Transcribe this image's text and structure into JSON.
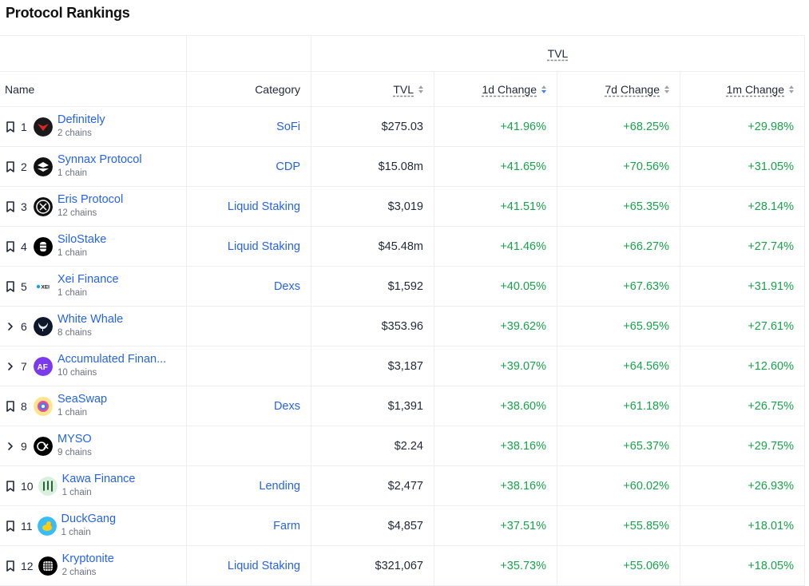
{
  "page": {
    "title": "Protocol Rankings"
  },
  "headers": {
    "group_tvl": "TVL",
    "name": "Name",
    "category": "Category",
    "tvl": "TVL",
    "change_1d": "1d Change",
    "change_7d": "7d Change",
    "change_1m": "1m Change"
  },
  "colors": {
    "link": "#2563eb",
    "positive": "#16a34a",
    "sort_active": "#3b82f6"
  },
  "rows": [
    {
      "rank": "1",
      "lead_icon": "bookmark-icon",
      "name": "Definitely",
      "chains": "2 chains",
      "category": "SoFi",
      "tvl": "$275.03",
      "change_1d": "+41.96%",
      "change_7d": "+68.25%",
      "change_1m": "+29.98%",
      "logo_icon": "definitely-logo",
      "logo_bg": "#1a1a1a"
    },
    {
      "rank": "2",
      "lead_icon": "bookmark-icon",
      "name": "Synnax Protocol",
      "chains": "1 chain",
      "category": "CDP",
      "tvl": "$15.08m",
      "change_1d": "+41.65%",
      "change_7d": "+70.56%",
      "change_1m": "+31.05%",
      "logo_icon": "synnax-logo",
      "logo_bg": "#111111"
    },
    {
      "rank": "3",
      "lead_icon": "bookmark-icon",
      "name": "Eris Protocol",
      "chains": "12 chains",
      "category": "Liquid Staking",
      "tvl": "$3,019",
      "change_1d": "+41.51%",
      "change_7d": "+65.35%",
      "change_1m": "+28.14%",
      "logo_icon": "eris-logo",
      "logo_bg": "#111111"
    },
    {
      "rank": "4",
      "lead_icon": "bookmark-icon",
      "name": "SiloStake",
      "chains": "1 chain",
      "category": "Liquid Staking",
      "tvl": "$45.48m",
      "change_1d": "+41.46%",
      "change_7d": "+66.27%",
      "change_1m": "+27.74%",
      "logo_icon": "silostake-logo",
      "logo_bg": "#000000"
    },
    {
      "rank": "5",
      "lead_icon": "bookmark-icon",
      "name": "Xei Finance",
      "chains": "1 chain",
      "category": "Dexs",
      "tvl": "$1,592",
      "change_1d": "+40.05%",
      "change_7d": "+67.63%",
      "change_1m": "+31.91%",
      "logo_icon": "xei-logo",
      "logo_bg": "#ffffff"
    },
    {
      "rank": "6",
      "lead_icon": "chevron-right-icon",
      "name": "White Whale",
      "chains": "8 chains",
      "category": "",
      "tvl": "$353.96",
      "change_1d": "+39.62%",
      "change_7d": "+65.95%",
      "change_1m": "+27.61%",
      "logo_icon": "white-whale-logo",
      "logo_bg": "#0f172a"
    },
    {
      "rank": "7",
      "lead_icon": "chevron-right-icon",
      "name": "Accumulated Finan...",
      "chains": "10 chains",
      "category": "",
      "tvl": "$3,187",
      "change_1d": "+39.07%",
      "change_7d": "+64.56%",
      "change_1m": "+12.60%",
      "logo_icon": "accumulated-finance-logo",
      "logo_bg": "#7c3aed",
      "logo_text": "AF"
    },
    {
      "rank": "8",
      "lead_icon": "bookmark-icon",
      "name": "SeaSwap",
      "chains": "1 chain",
      "category": "Dexs",
      "tvl": "$1,391",
      "change_1d": "+38.60%",
      "change_7d": "+61.18%",
      "change_1m": "+26.75%",
      "logo_icon": "seaswap-logo",
      "logo_bg": "#fde68a"
    },
    {
      "rank": "9",
      "lead_icon": "chevron-right-icon",
      "name": "MYSO",
      "chains": "9 chains",
      "category": "",
      "tvl": "$2.24",
      "change_1d": "+38.16%",
      "change_7d": "+65.37%",
      "change_1m": "+29.75%",
      "logo_icon": "myso-logo",
      "logo_bg": "#000000"
    },
    {
      "rank": "10",
      "lead_icon": "bookmark-icon",
      "name": "Kawa Finance",
      "chains": "1 chain",
      "category": "Lending",
      "tvl": "$2,477",
      "change_1d": "+38.16%",
      "change_7d": "+60.02%",
      "change_1m": "+26.93%",
      "logo_icon": "kawa-logo",
      "logo_bg": "#d9f0dc"
    },
    {
      "rank": "11",
      "lead_icon": "bookmark-icon",
      "name": "DuckGang",
      "chains": "1 chain",
      "category": "Farm",
      "tvl": "$4,857",
      "change_1d": "+37.51%",
      "change_7d": "+55.85%",
      "change_1m": "+18.01%",
      "logo_icon": "duckgang-logo",
      "logo_bg": "#38bdf8"
    },
    {
      "rank": "12",
      "lead_icon": "bookmark-icon",
      "name": "Kryptonite",
      "chains": "2 chains",
      "category": "Liquid Staking",
      "tvl": "$321,067",
      "change_1d": "+35.73%",
      "change_7d": "+55.06%",
      "change_1m": "+18.05%",
      "logo_icon": "kryptonite-logo",
      "logo_bg": "#000000"
    }
  ]
}
